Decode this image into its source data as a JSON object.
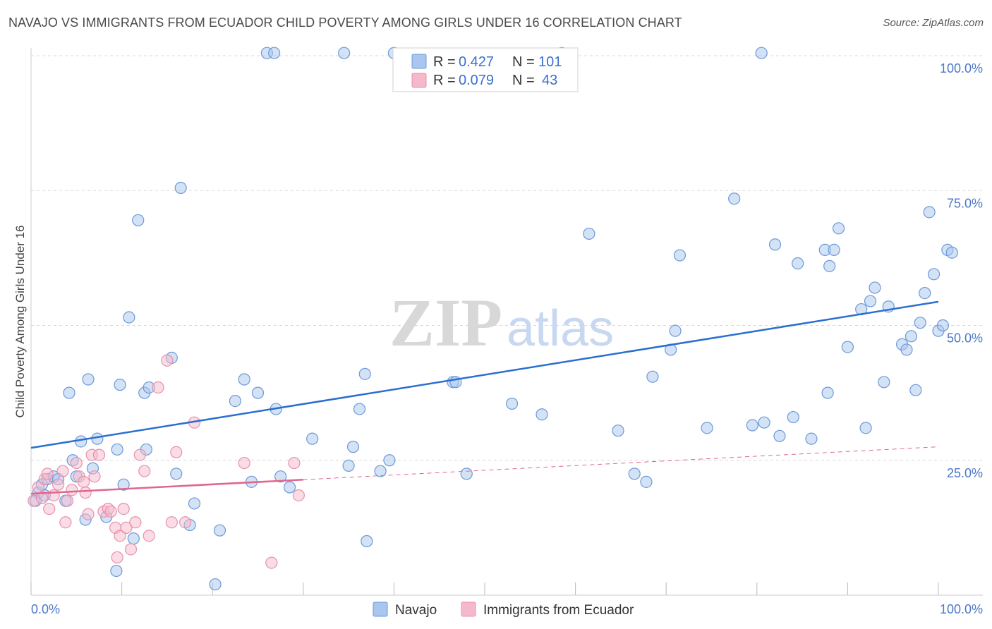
{
  "title": "NAVAJO VS IMMIGRANTS FROM ECUADOR CHILD POVERTY AMONG GIRLS UNDER 16 CORRELATION CHART",
  "source": "Source: ZipAtlas.com",
  "watermark": {
    "zip": "ZIP",
    "atlas": "atlas"
  },
  "colors": {
    "navajo_fill": "#a9c6ee",
    "navajo_stroke": "#6b9ad8",
    "navajo_line": "#2a6fd0",
    "ecuador_fill": "#f6b9cc",
    "ecuador_stroke": "#e890ac",
    "ecuador_line": "#e06690",
    "grid": "#d8d8d8",
    "axis_text": "#4a78c8"
  },
  "legend": {
    "rows": [
      {
        "r_label": "R =",
        "r_value": "0.427",
        "n_label": "N =",
        "n_value": "101"
      },
      {
        "r_label": "R =",
        "r_value": "0.079",
        "n_label": "N =",
        "n_value": "43"
      }
    ]
  },
  "chart_data": {
    "type": "scatter",
    "title": "NAVAJO VS IMMIGRANTS FROM ECUADOR CHILD POVERTY AMONG GIRLS UNDER 16 CORRELATION CHART",
    "xlabel": "",
    "ylabel": "Child Poverty Among Girls Under 16",
    "xlim": [
      0,
      100
    ],
    "ylim": [
      0,
      100
    ],
    "x_tick_labels": [
      "0.0%",
      "100.0%"
    ],
    "y_tick_labels": [
      {
        "value": 25,
        "label": "25.0%"
      },
      {
        "value": 50,
        "label": "50.0%"
      },
      {
        "value": 75,
        "label": "75.0%"
      },
      {
        "value": 100,
        "label": "100.0%"
      }
    ],
    "grid": true,
    "series": [
      {
        "name": "Navajo",
        "trend": {
          "x0": 0,
          "y0": 27.3,
          "x1": 100,
          "y1": 54.4,
          "dashed_from": null
        },
        "points": [
          [
            0.5,
            17.5
          ],
          [
            0.8,
            19
          ],
          [
            1.2,
            20.5
          ],
          [
            1.5,
            18.5
          ],
          [
            1.8,
            21.5
          ],
          [
            2.5,
            22
          ],
          [
            3,
            21.5
          ],
          [
            3.8,
            17.5
          ],
          [
            4.2,
            37.5
          ],
          [
            4.6,
            25
          ],
          [
            5,
            22
          ],
          [
            5.5,
            28.5
          ],
          [
            6,
            14
          ],
          [
            6.3,
            40
          ],
          [
            6.8,
            23.5
          ],
          [
            7.3,
            29
          ],
          [
            8.3,
            14.5
          ],
          [
            9.4,
            4.5
          ],
          [
            9.5,
            27
          ],
          [
            9.8,
            39
          ],
          [
            10.2,
            20.5
          ],
          [
            10.8,
            51.5
          ],
          [
            11.3,
            10.5
          ],
          [
            11.8,
            69.5
          ],
          [
            12.5,
            37.5
          ],
          [
            12.7,
            27
          ],
          [
            13,
            38.5
          ],
          [
            15.5,
            44
          ],
          [
            16,
            22.5
          ],
          [
            16.5,
            75.5
          ],
          [
            17.5,
            13
          ],
          [
            18,
            17
          ],
          [
            20.3,
            2
          ],
          [
            20.8,
            12
          ],
          [
            22.5,
            36
          ],
          [
            23.5,
            40
          ],
          [
            24.3,
            21
          ],
          [
            25,
            37.5
          ],
          [
            26,
            100.5
          ],
          [
            26.8,
            100.5
          ],
          [
            27,
            34.5
          ],
          [
            27.5,
            22
          ],
          [
            28.5,
            20
          ],
          [
            31,
            29
          ],
          [
            34.5,
            100.5
          ],
          [
            35,
            24
          ],
          [
            35.5,
            27.5
          ],
          [
            36.2,
            34.5
          ],
          [
            36.8,
            41
          ],
          [
            37,
            10
          ],
          [
            38.5,
            23
          ],
          [
            39.5,
            25
          ],
          [
            40,
            100.5
          ],
          [
            46.5,
            39.5
          ],
          [
            46.8,
            39.5
          ],
          [
            48,
            22.5
          ],
          [
            53,
            35.5
          ],
          [
            56.3,
            33.5
          ],
          [
            58.5,
            100.5
          ],
          [
            61.5,
            67
          ],
          [
            64.7,
            30.5
          ],
          [
            66.5,
            22.5
          ],
          [
            67.8,
            21
          ],
          [
            68.5,
            40.5
          ],
          [
            70.5,
            45.5
          ],
          [
            71,
            49
          ],
          [
            71.5,
            63
          ],
          [
            74.5,
            31
          ],
          [
            77.5,
            73.5
          ],
          [
            79.5,
            31.5
          ],
          [
            80.5,
            100.5
          ],
          [
            80.8,
            32
          ],
          [
            82,
            65
          ],
          [
            82.5,
            29.5
          ],
          [
            84,
            33
          ],
          [
            84.5,
            61.5
          ],
          [
            86,
            29
          ],
          [
            87.5,
            64
          ],
          [
            87.8,
            37.5
          ],
          [
            88,
            61
          ],
          [
            88.5,
            64
          ],
          [
            89,
            68
          ],
          [
            90,
            46
          ],
          [
            91.5,
            53
          ],
          [
            92,
            31
          ],
          [
            92.5,
            54.5
          ],
          [
            93,
            57
          ],
          [
            94,
            39.5
          ],
          [
            94.5,
            53.5
          ],
          [
            96,
            46.5
          ],
          [
            96.5,
            45.5
          ],
          [
            97,
            48
          ],
          [
            97.5,
            38
          ],
          [
            98,
            50.5
          ],
          [
            98.5,
            56
          ],
          [
            99,
            71
          ],
          [
            99.5,
            59.5
          ],
          [
            100,
            49
          ],
          [
            100.5,
            50
          ],
          [
            101,
            64
          ],
          [
            101.5,
            63.5
          ]
        ]
      },
      {
        "name": "Immigrants from Ecuador",
        "trend": {
          "x0": 0,
          "y0": 18.8,
          "x1": 100,
          "y1": 27.5,
          "dashed_from": 30
        },
        "points": [
          [
            0.3,
            17.5
          ],
          [
            0.8,
            20
          ],
          [
            1.2,
            18
          ],
          [
            1.5,
            21.5
          ],
          [
            1.8,
            22.5
          ],
          [
            2,
            16
          ],
          [
            2.5,
            18.5
          ],
          [
            3,
            20.5
          ],
          [
            3.5,
            23
          ],
          [
            3.8,
            13.5
          ],
          [
            4,
            17.5
          ],
          [
            4.5,
            19.5
          ],
          [
            5,
            24.5
          ],
          [
            5.3,
            22
          ],
          [
            5.8,
            21
          ],
          [
            6,
            19
          ],
          [
            6.3,
            15
          ],
          [
            6.7,
            26
          ],
          [
            7,
            22
          ],
          [
            7.5,
            26
          ],
          [
            8,
            15.5
          ],
          [
            8.5,
            16
          ],
          [
            8.8,
            15.5
          ],
          [
            9.3,
            12.5
          ],
          [
            9.5,
            7
          ],
          [
            9.8,
            11
          ],
          [
            10.2,
            16
          ],
          [
            10.5,
            12.5
          ],
          [
            11,
            8.5
          ],
          [
            11.5,
            13.5
          ],
          [
            12,
            26
          ],
          [
            12.5,
            23
          ],
          [
            13,
            11
          ],
          [
            14,
            38.5
          ],
          [
            15,
            43.5
          ],
          [
            15.5,
            13.5
          ],
          [
            16,
            26.5
          ],
          [
            17,
            13.5
          ],
          [
            18,
            32
          ],
          [
            23.5,
            24.5
          ],
          [
            26.5,
            6
          ],
          [
            29,
            24.5
          ],
          [
            29.5,
            18.5
          ]
        ]
      }
    ]
  },
  "bottom_legend": {
    "items": [
      {
        "label": "Navajo"
      },
      {
        "label": "Immigrants from Ecuador"
      }
    ]
  }
}
